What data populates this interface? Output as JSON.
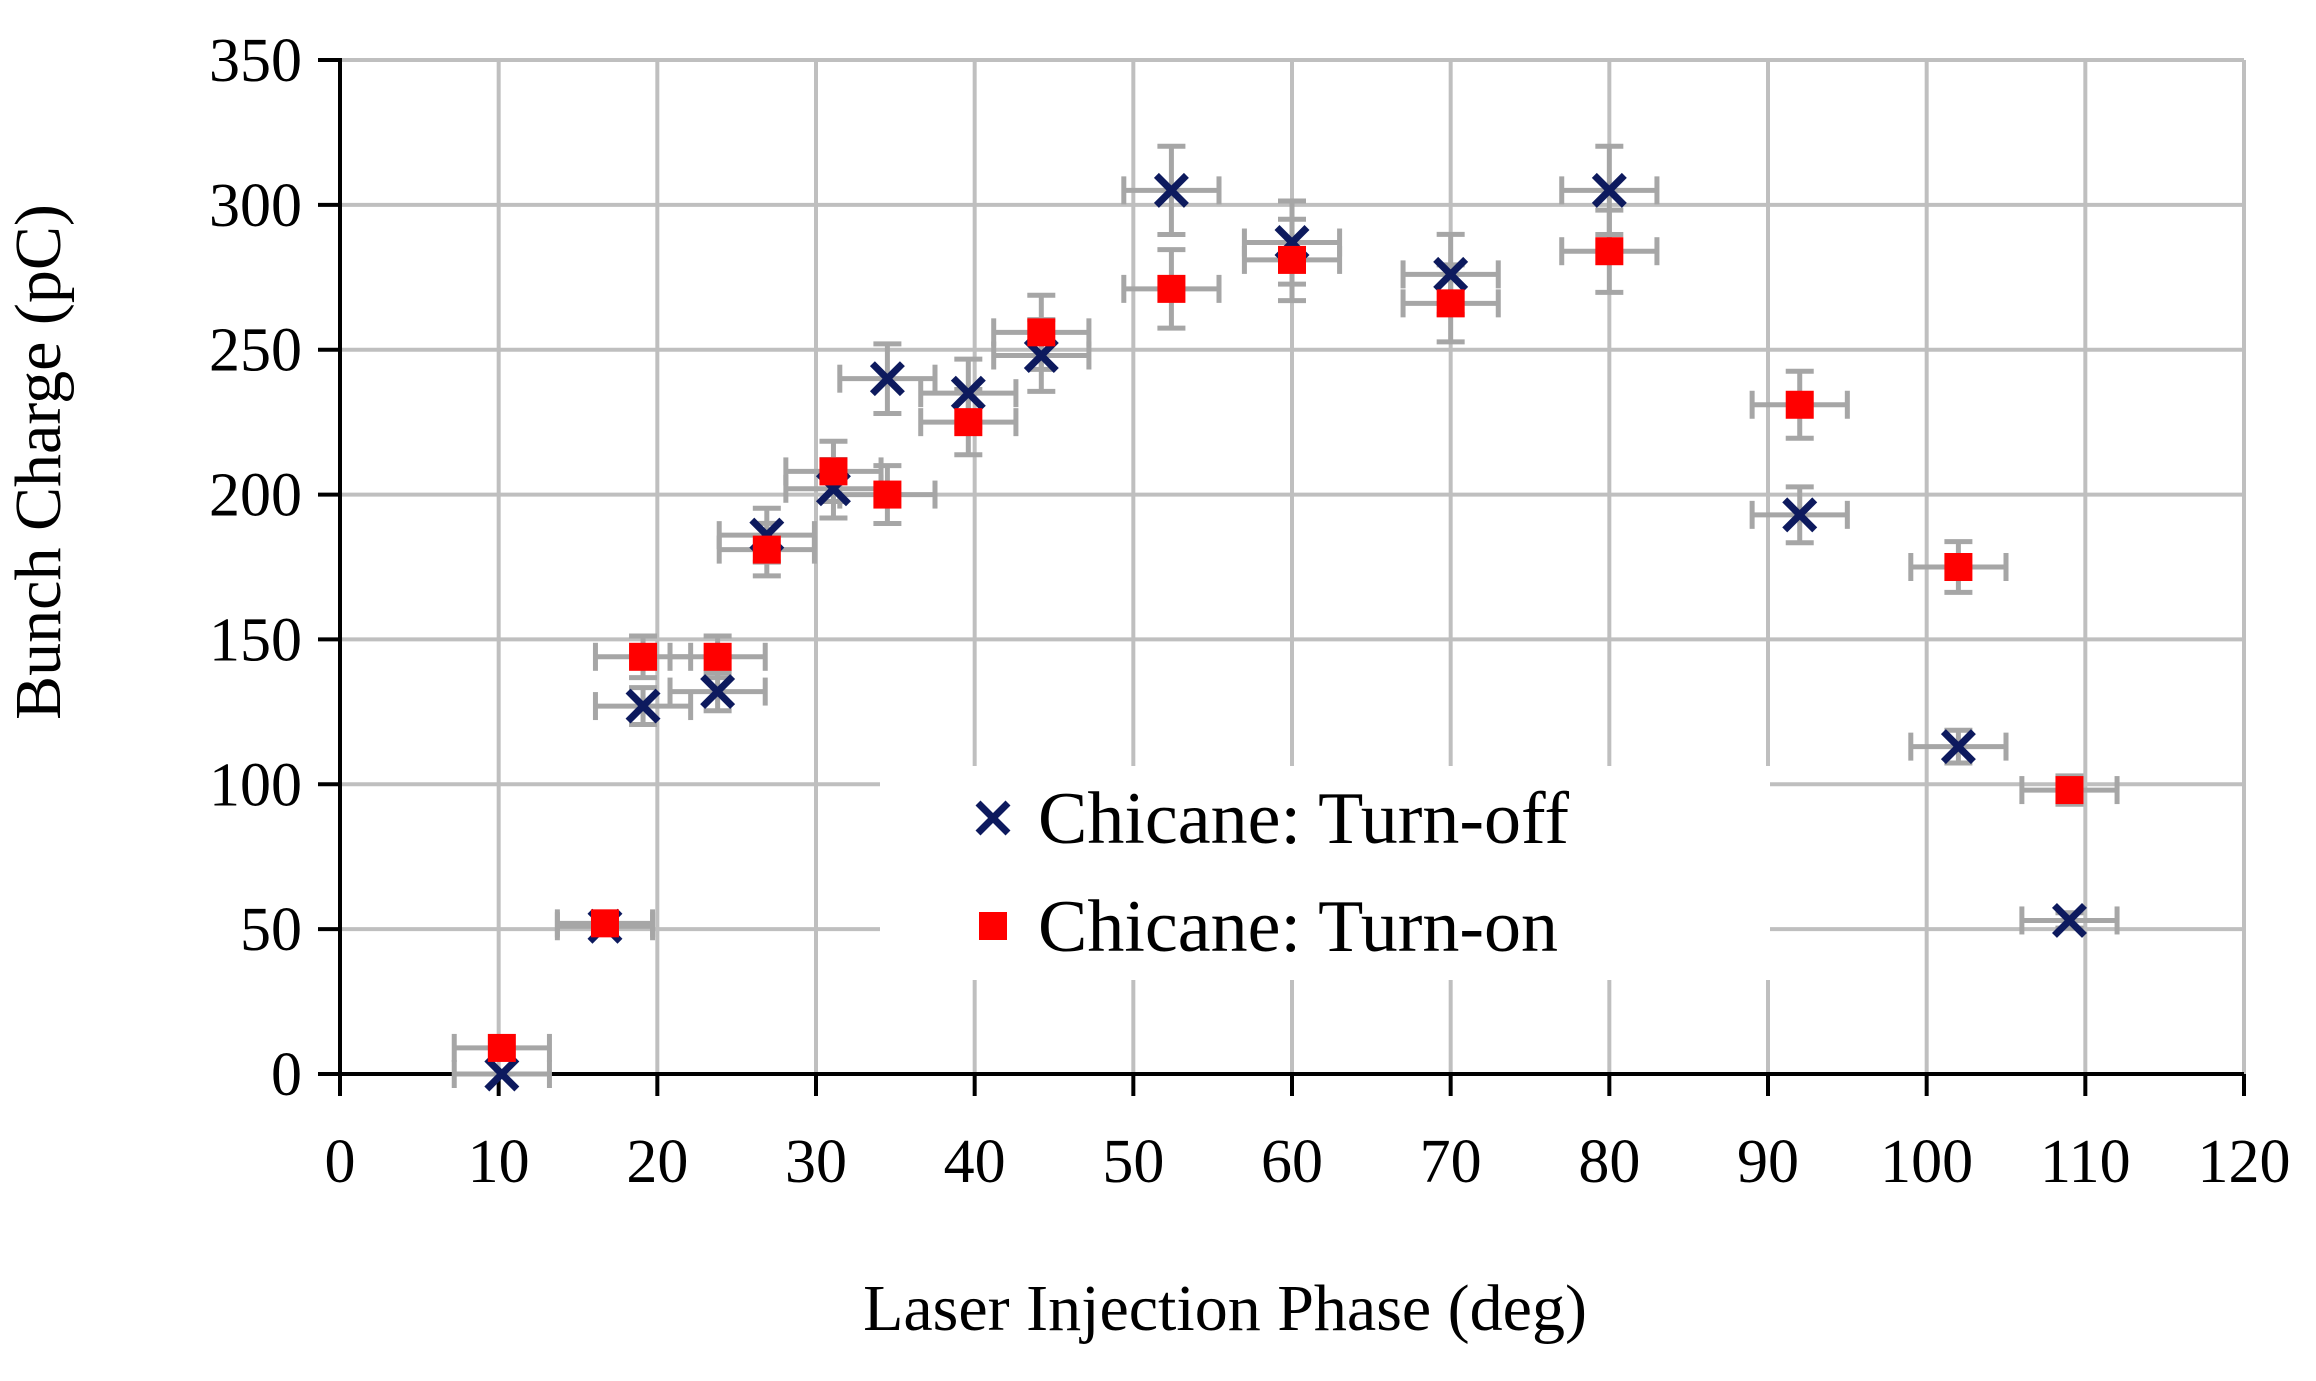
{
  "chart_data": {
    "type": "scatter",
    "title": "",
    "xlabel": "Laser Injection Phase (deg)",
    "ylabel": "Bunch Charge (pC)",
    "xlim": [
      0,
      120
    ],
    "ylim": [
      0,
      350
    ],
    "xticks": [
      0,
      10,
      20,
      30,
      40,
      50,
      60,
      70,
      80,
      90,
      100,
      110,
      120
    ],
    "yticks": [
      0,
      50,
      100,
      150,
      200,
      250,
      300,
      350
    ],
    "grid": true,
    "legend_position": "center",
    "error_bars": {
      "x": 3,
      "y_fraction": 0.05
    },
    "series": [
      {
        "name": "Chicane: Turn-off",
        "marker": "x",
        "color": "#0d1a5e",
        "points": [
          {
            "x": 10.2,
            "y": 0
          },
          {
            "x": 16.7,
            "y": 51
          },
          {
            "x": 19.1,
            "y": 127
          },
          {
            "x": 23.8,
            "y": 132
          },
          {
            "x": 26.9,
            "y": 186
          },
          {
            "x": 31.1,
            "y": 202
          },
          {
            "x": 34.5,
            "y": 240
          },
          {
            "x": 39.6,
            "y": 235
          },
          {
            "x": 44.2,
            "y": 248
          },
          {
            "x": 52.4,
            "y": 305
          },
          {
            "x": 60.0,
            "y": 287
          },
          {
            "x": 70.0,
            "y": 276
          },
          {
            "x": 80.0,
            "y": 305
          },
          {
            "x": 92.0,
            "y": 193
          },
          {
            "x": 102.0,
            "y": 113
          },
          {
            "x": 109.0,
            "y": 53
          }
        ]
      },
      {
        "name": "Chicane: Turn-on",
        "marker": "square",
        "color": "#ff0000",
        "points": [
          {
            "x": 10.2,
            "y": 9
          },
          {
            "x": 16.7,
            "y": 52
          },
          {
            "x": 19.1,
            "y": 144
          },
          {
            "x": 23.8,
            "y": 144
          },
          {
            "x": 26.9,
            "y": 181
          },
          {
            "x": 31.1,
            "y": 208
          },
          {
            "x": 34.5,
            "y": 200
          },
          {
            "x": 39.6,
            "y": 225
          },
          {
            "x": 44.2,
            "y": 256
          },
          {
            "x": 52.4,
            "y": 271
          },
          {
            "x": 60.0,
            "y": 281
          },
          {
            "x": 70.0,
            "y": 266
          },
          {
            "x": 80.0,
            "y": 284
          },
          {
            "x": 92.0,
            "y": 231
          },
          {
            "x": 102.0,
            "y": 175
          },
          {
            "x": 109.0,
            "y": 98
          }
        ]
      }
    ]
  }
}
